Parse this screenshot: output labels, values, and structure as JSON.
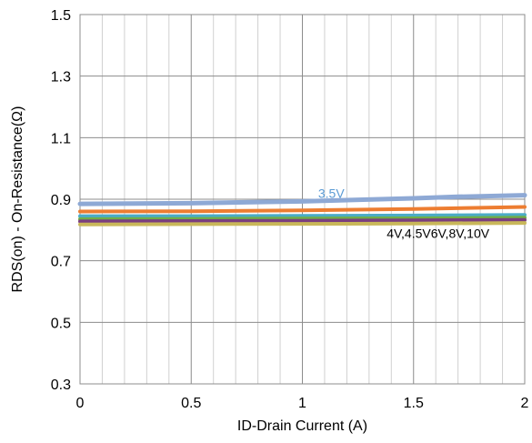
{
  "chart_data": {
    "type": "line",
    "title": "",
    "xlabel": "ID-Drain Current (A)",
    "ylabel": "RDS(on) - On-Resistance(Ω)",
    "xlim": [
      0,
      2
    ],
    "ylim": [
      0.3,
      1.5
    ],
    "x_ticks": [
      0,
      0.5,
      1,
      1.5,
      2
    ],
    "x_tick_labels": [
      "0",
      "0.5",
      "1",
      "1.5",
      "2"
    ],
    "y_ticks": [
      0.3,
      0.5,
      0.7,
      0.9,
      1.1,
      1.3,
      1.5
    ],
    "y_tick_labels": [
      "0.3",
      "0.5",
      "0.7",
      "0.9",
      "1.1",
      "1.3",
      "1.5"
    ],
    "x_minor_step": 0.1,
    "grid": true,
    "legend": "none",
    "series": [
      {
        "color": "#8EA9D5",
        "x": [
          0,
          0.5,
          1,
          1.5,
          1.7,
          2
        ],
        "y": [
          0.885,
          0.887,
          0.893,
          0.903,
          0.908,
          0.913
        ]
      },
      {
        "color": "#ED7D31",
        "x": [
          0,
          0.5,
          1,
          1.5,
          2
        ],
        "y": [
          0.86,
          0.861,
          0.864,
          0.868,
          0.875
        ]
      },
      {
        "color": "#4BACC6",
        "x": [
          0,
          0.5,
          1,
          1.5,
          2
        ],
        "y": [
          0.845,
          0.845,
          0.846,
          0.847,
          0.849
        ]
      },
      {
        "color": "#70AD47",
        "x": [
          0,
          0.5,
          1,
          1.5,
          2
        ],
        "y": [
          0.835,
          0.836,
          0.837,
          0.838,
          0.84
        ]
      },
      {
        "color": "#7A3E7E",
        "x": [
          0,
          0.5,
          1,
          1.5,
          2
        ],
        "y": [
          0.828,
          0.829,
          0.83,
          0.831,
          0.833
        ]
      },
      {
        "color": "#C9B85A",
        "x": [
          0,
          0.5,
          1,
          1.5,
          2
        ],
        "y": [
          0.818,
          0.819,
          0.82,
          0.821,
          0.823
        ]
      }
    ],
    "annotations": [
      {
        "text": "3.5V",
        "x": 1.13,
        "y": 0.904,
        "color": "#5B9BD5"
      },
      {
        "text": "4V,4.5V6V,8V,10V",
        "x": 1.61,
        "y": 0.775,
        "color": "#000000"
      }
    ]
  }
}
